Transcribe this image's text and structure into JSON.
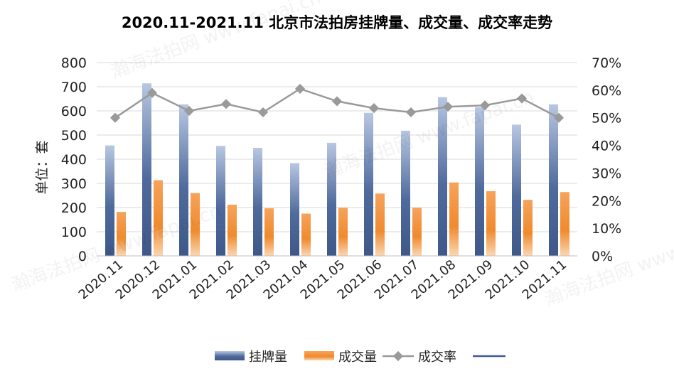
{
  "chart_data": {
    "type": "bar",
    "title": "2020.11-2021.11 北京市法拍房挂牌量、成交量、成交率走势",
    "ylabel": "单位：套",
    "ylim": [
      0,
      800
    ],
    "y_ticks": [
      "0",
      "100",
      "200",
      "300",
      "400",
      "500",
      "600",
      "700",
      "800"
    ],
    "y2lim": [
      0,
      0.7
    ],
    "y2_ticks": [
      "0%",
      "10%",
      "20%",
      "30%",
      "40%",
      "50%",
      "60%",
      "70%"
    ],
    "categories": [
      "2020.11",
      "2020.12",
      "2021.01",
      "2021.02",
      "2021.03",
      "2021.04",
      "2021.05",
      "2021.06",
      "2021.07",
      "2021.08",
      "2021.09",
      "2021.10",
      "2021.11"
    ],
    "series": [
      {
        "name": "挂牌量",
        "kind": "bar",
        "axis": "left",
        "color": "#4a6394",
        "values": [
          457,
          714,
          627,
          455,
          447,
          384,
          468,
          592,
          518,
          657,
          615,
          543,
          627
        ]
      },
      {
        "name": "成交量",
        "kind": "bar",
        "axis": "left",
        "color": "#f08a2e",
        "values": [
          182,
          313,
          260,
          212,
          197,
          175,
          199,
          258,
          199,
          304,
          268,
          232,
          264
        ]
      },
      {
        "name": "成交率",
        "kind": "line",
        "axis": "right",
        "color": "#9a9a9a",
        "values": [
          0.5,
          0.59,
          0.525,
          0.55,
          0.52,
          0.605,
          0.56,
          0.535,
          0.52,
          0.54,
          0.545,
          0.57,
          0.5
        ]
      }
    ],
    "legend": {
      "position": "bottom",
      "items": [
        "挂牌量",
        "成交量",
        "成交率",
        ""
      ]
    },
    "grid": true,
    "watermark": "瀚海法拍网 www.fapai.cn"
  }
}
